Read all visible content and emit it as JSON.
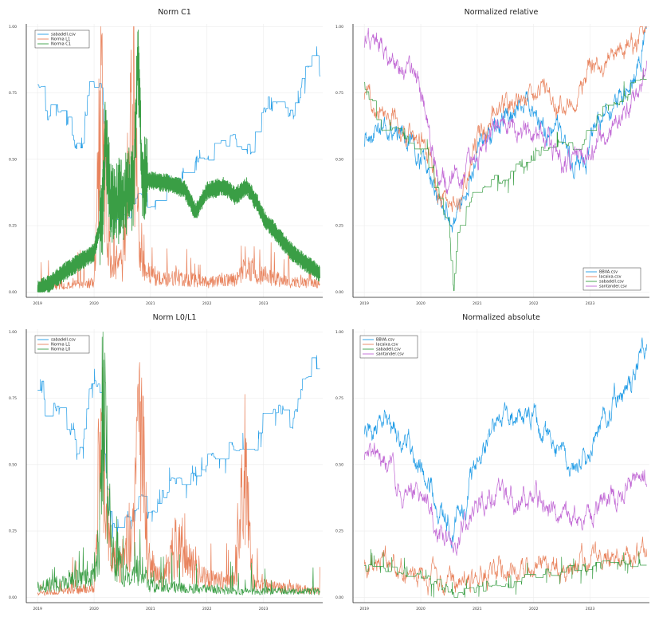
{
  "chart_data": [
    {
      "type": "line",
      "title": "Norm C1",
      "xlabel": "",
      "ylabel": "",
      "xticks": [
        "2019",
        "2020",
        "2021",
        "2022",
        "2023"
      ],
      "yticks": [
        "0.00",
        "0.25",
        "0.50",
        "0.75",
        "1.00"
      ],
      "xlim": [
        2018.8,
        2024.05
      ],
      "ylim": [
        -0.02,
        1.01
      ],
      "grid": true,
      "legend_position": "top-left",
      "series": [
        {
          "name": "sabadell.csv",
          "color": "#1f9be6",
          "kind": "step_high",
          "x": [
            2019.0,
            2019.1,
            2019.15,
            2019.3,
            2019.5,
            2019.65,
            2019.8,
            2019.9,
            2020.0,
            2020.1,
            2020.15,
            2020.2,
            2020.3,
            2020.5,
            2020.7,
            2020.85,
            2021.0,
            2021.3,
            2021.5,
            2021.7,
            2022.0,
            2022.3,
            2022.5,
            2022.8,
            2023.0,
            2023.3,
            2023.5,
            2023.7,
            2023.9,
            2024.0
          ],
          "y": [
            0.78,
            0.82,
            0.66,
            0.72,
            0.66,
            0.57,
            0.56,
            0.77,
            0.79,
            0.8,
            0.78,
            0.5,
            0.28,
            0.29,
            0.31,
            0.38,
            0.3,
            0.42,
            0.43,
            0.47,
            0.52,
            0.55,
            0.58,
            0.53,
            0.7,
            0.72,
            0.65,
            0.8,
            0.93,
            0.81
          ]
        },
        {
          "name": "Norma L1",
          "color": "#e8825c",
          "kind": "spiky_low",
          "x": [
            2019.0,
            2019.5,
            2020.0,
            2020.12,
            2020.18,
            2020.3,
            2020.5,
            2020.7,
            2020.78,
            2020.9,
            2021.2,
            2021.5,
            2022.0,
            2022.5,
            2022.7,
            2023.0,
            2023.5,
            2024.0
          ],
          "y": [
            0.02,
            0.03,
            0.05,
            1.0,
            0.55,
            0.15,
            0.12,
            0.98,
            0.35,
            0.1,
            0.06,
            0.07,
            0.05,
            0.06,
            0.12,
            0.08,
            0.05,
            0.04
          ]
        },
        {
          "name": "Norma C1",
          "color": "#3a9e45",
          "kind": "band",
          "x": [
            2019.0,
            2019.2,
            2019.5,
            2019.8,
            2020.0,
            2020.15,
            2020.2,
            2020.3,
            2020.5,
            2020.7,
            2020.78,
            2020.85,
            2021.0,
            2021.3,
            2021.6,
            2021.8,
            2022.0,
            2022.3,
            2022.5,
            2022.7,
            2022.9,
            2023.0,
            2023.5,
            2024.0
          ],
          "y": [
            0.01,
            0.03,
            0.08,
            0.12,
            0.15,
            0.3,
            0.6,
            0.32,
            0.35,
            0.4,
            0.9,
            0.42,
            0.42,
            0.41,
            0.39,
            0.3,
            0.38,
            0.4,
            0.36,
            0.4,
            0.33,
            0.28,
            0.15,
            0.07
          ]
        }
      ]
    },
    {
      "type": "line",
      "title": "Normalized relative",
      "xlabel": "",
      "ylabel": "",
      "xticks": [
        "2019",
        "2020",
        "2021",
        "2022",
        "2023"
      ],
      "yticks": [
        "0.00",
        "0.25",
        "0.50",
        "0.75",
        "1.00"
      ],
      "xlim": [
        2018.8,
        2024.05
      ],
      "ylim": [
        -0.02,
        1.01
      ],
      "grid": true,
      "legend_position": "bottom-right",
      "series": [
        {
          "name": "BBVA.csv",
          "color": "#1f9be6",
          "kind": "noisy",
          "x": [
            2019.0,
            2019.3,
            2019.6,
            2019.9,
            2020.15,
            2020.3,
            2020.6,
            2020.8,
            2021.0,
            2021.3,
            2021.6,
            2021.9,
            2022.1,
            2022.4,
            2022.7,
            2023.0,
            2023.3,
            2023.6,
            2023.8,
            2024.0
          ],
          "y": [
            0.58,
            0.64,
            0.6,
            0.53,
            0.45,
            0.32,
            0.27,
            0.34,
            0.52,
            0.63,
            0.68,
            0.7,
            0.64,
            0.6,
            0.46,
            0.56,
            0.68,
            0.74,
            0.82,
            0.96
          ]
        },
        {
          "name": "lacaixa.csv",
          "color": "#e8825c",
          "kind": "noisy",
          "x": [
            2019.0,
            2019.3,
            2019.6,
            2019.9,
            2020.15,
            2020.3,
            2020.6,
            2020.8,
            2021.0,
            2021.3,
            2021.6,
            2021.9,
            2022.1,
            2022.4,
            2022.7,
            2023.0,
            2023.3,
            2023.6,
            2023.8,
            2024.0
          ],
          "y": [
            0.75,
            0.72,
            0.64,
            0.58,
            0.52,
            0.36,
            0.3,
            0.4,
            0.58,
            0.66,
            0.7,
            0.72,
            0.78,
            0.7,
            0.75,
            0.82,
            0.86,
            0.9,
            0.92,
            0.97
          ]
        },
        {
          "name": "sabadell.csv",
          "color": "#3a9e45",
          "kind": "step_noisy",
          "x": [
            2019.0,
            2019.3,
            2019.6,
            2019.9,
            2020.1,
            2020.3,
            2020.5,
            2020.58,
            2020.65,
            2020.8,
            2021.0,
            2021.3,
            2021.6,
            2022.0,
            2022.3,
            2022.6,
            2022.8,
            2023.0,
            2023.3,
            2023.6,
            2023.8,
            2024.0
          ],
          "y": [
            0.78,
            0.62,
            0.6,
            0.55,
            0.5,
            0.35,
            0.25,
            0.0,
            0.22,
            0.32,
            0.38,
            0.42,
            0.45,
            0.52,
            0.55,
            0.56,
            0.52,
            0.65,
            0.7,
            0.72,
            0.8,
            0.82
          ]
        },
        {
          "name": "santander.csv",
          "color": "#c066d4",
          "kind": "noisy",
          "x": [
            2019.0,
            2019.2,
            2019.4,
            2019.6,
            2019.9,
            2020.15,
            2020.3,
            2020.6,
            2020.8,
            2021.0,
            2021.3,
            2021.6,
            2021.9,
            2022.1,
            2022.4,
            2022.7,
            2023.0,
            2023.3,
            2023.6,
            2023.8,
            2024.0
          ],
          "y": [
            0.95,
            0.96,
            0.9,
            0.82,
            0.8,
            0.62,
            0.45,
            0.4,
            0.48,
            0.52,
            0.6,
            0.64,
            0.6,
            0.58,
            0.52,
            0.48,
            0.52,
            0.62,
            0.68,
            0.74,
            0.8
          ]
        }
      ]
    },
    {
      "type": "line",
      "title": "Norm L0/L1",
      "xlabel": "",
      "ylabel": "",
      "xticks": [
        "2019",
        "2020",
        "2021",
        "2022",
        "2023"
      ],
      "yticks": [
        "0.00",
        "0.25",
        "0.50",
        "0.75",
        "1.00"
      ],
      "xlim": [
        2018.8,
        2024.05
      ],
      "ylim": [
        -0.02,
        1.01
      ],
      "grid": true,
      "legend_position": "top-left",
      "series": [
        {
          "name": "sabadell.csv",
          "color": "#1f9be6",
          "kind": "step_high",
          "x": [
            2019.0,
            2019.1,
            2019.15,
            2019.3,
            2019.5,
            2019.65,
            2019.8,
            2019.9,
            2020.0,
            2020.1,
            2020.15,
            2020.2,
            2020.3,
            2020.5,
            2020.7,
            2020.85,
            2021.0,
            2021.3,
            2021.5,
            2021.7,
            2022.0,
            2022.3,
            2022.5,
            2022.8,
            2023.0,
            2023.3,
            2023.5,
            2023.7,
            2023.9,
            2024.0
          ],
          "y": [
            0.78,
            0.82,
            0.66,
            0.72,
            0.66,
            0.57,
            0.56,
            0.77,
            0.79,
            0.8,
            0.78,
            0.5,
            0.28,
            0.29,
            0.31,
            0.38,
            0.3,
            0.42,
            0.43,
            0.47,
            0.52,
            0.55,
            0.58,
            0.53,
            0.7,
            0.72,
            0.65,
            0.8,
            0.93,
            0.81
          ]
        },
        {
          "name": "Norma L1",
          "color": "#e8825c",
          "kind": "spiky_low",
          "x": [
            2019.0,
            2019.5,
            2020.0,
            2020.12,
            2020.18,
            2020.3,
            2020.5,
            2020.7,
            2020.82,
            2020.95,
            2021.2,
            2021.5,
            2021.9,
            2022.2,
            2022.5,
            2022.67,
            2022.8,
            2023.0,
            2023.5,
            2024.0
          ],
          "y": [
            0.02,
            0.03,
            0.05,
            1.0,
            0.6,
            0.2,
            0.15,
            0.3,
            0.96,
            0.2,
            0.08,
            0.25,
            0.1,
            0.08,
            0.1,
            0.65,
            0.08,
            0.06,
            0.05,
            0.03
          ]
        },
        {
          "name": "Norma L0",
          "color": "#3a9e45",
          "kind": "spiky_low",
          "x": [
            2019.0,
            2019.5,
            2020.0,
            2020.1,
            2020.15,
            2020.3,
            2020.5,
            2020.7,
            2020.8,
            2021.0,
            2021.5,
            2022.0,
            2022.5,
            2023.0,
            2023.5,
            2024.0
          ],
          "y": [
            0.05,
            0.08,
            0.1,
            0.3,
            1.0,
            0.25,
            0.12,
            0.1,
            0.15,
            0.06,
            0.05,
            0.04,
            0.03,
            0.03,
            0.03,
            0.03
          ]
        }
      ]
    },
    {
      "type": "line",
      "title": "Normalized absolute",
      "xlabel": "",
      "ylabel": "",
      "xticks": [
        "2019",
        "2020",
        "2021",
        "2022",
        "2023"
      ],
      "yticks": [
        "0.00",
        "0.25",
        "0.50",
        "0.75",
        "1.00"
      ],
      "xlim": [
        2018.8,
        2024.05
      ],
      "ylim": [
        -0.02,
        1.01
      ],
      "grid": true,
      "legend_position": "top-left",
      "series": [
        {
          "name": "BBVA.csv",
          "color": "#1f9be6",
          "kind": "noisy",
          "x": [
            2019.0,
            2019.3,
            2019.6,
            2019.9,
            2020.15,
            2020.3,
            2020.6,
            2020.8,
            2021.0,
            2021.3,
            2021.6,
            2021.9,
            2022.1,
            2022.4,
            2022.7,
            2023.0,
            2023.3,
            2023.6,
            2023.8,
            2024.0
          ],
          "y": [
            0.6,
            0.65,
            0.6,
            0.53,
            0.46,
            0.32,
            0.26,
            0.34,
            0.55,
            0.65,
            0.7,
            0.7,
            0.64,
            0.6,
            0.46,
            0.56,
            0.7,
            0.78,
            0.85,
            0.97
          ]
        },
        {
          "name": "lacaixa.csv",
          "color": "#e8825c",
          "kind": "noisy",
          "x": [
            2019.0,
            2019.5,
            2020.0,
            2020.3,
            2020.6,
            2021.0,
            2021.5,
            2022.0,
            2022.5,
            2023.0,
            2023.5,
            2024.0
          ],
          "y": [
            0.12,
            0.11,
            0.1,
            0.07,
            0.06,
            0.09,
            0.1,
            0.11,
            0.12,
            0.13,
            0.14,
            0.15
          ]
        },
        {
          "name": "sabadell.csv",
          "color": "#3a9e45",
          "kind": "step_noisy",
          "x": [
            2019.0,
            2019.5,
            2020.0,
            2020.3,
            2020.6,
            2020.8,
            2021.0,
            2021.5,
            2022.0,
            2022.5,
            2023.0,
            2023.5,
            2024.0
          ],
          "y": [
            0.12,
            0.1,
            0.09,
            0.05,
            0.01,
            0.03,
            0.04,
            0.05,
            0.08,
            0.1,
            0.12,
            0.13,
            0.14
          ]
        },
        {
          "name": "santander.csv",
          "color": "#c066d4",
          "kind": "noisy",
          "x": [
            2019.0,
            2019.2,
            2019.4,
            2019.6,
            2019.9,
            2020.15,
            2020.3,
            2020.6,
            2020.8,
            2021.0,
            2021.3,
            2021.6,
            2021.9,
            2022.1,
            2022.4,
            2022.7,
            2023.0,
            2023.3,
            2023.6,
            2023.8,
            2024.0
          ],
          "y": [
            0.5,
            0.52,
            0.47,
            0.43,
            0.42,
            0.34,
            0.25,
            0.2,
            0.28,
            0.34,
            0.38,
            0.4,
            0.38,
            0.36,
            0.32,
            0.27,
            0.3,
            0.38,
            0.4,
            0.42,
            0.44
          ]
        }
      ]
    }
  ]
}
